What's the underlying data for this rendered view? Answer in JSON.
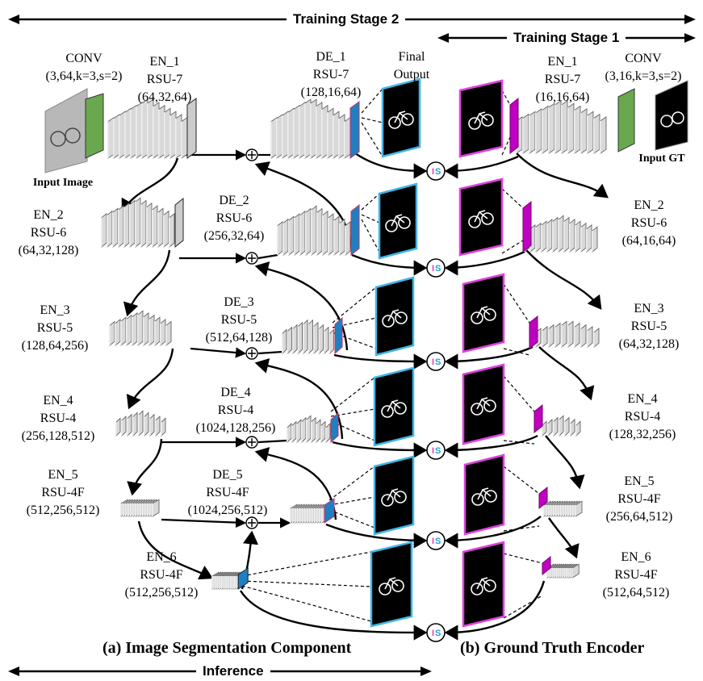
{
  "banners": {
    "stage2": "Training Stage 2",
    "stage1": "Training Stage 1",
    "inference": "Inference"
  },
  "captions": {
    "a": "(a) Image Segmentation Component",
    "b": "(b) Ground Truth Encoder"
  },
  "inputs": {
    "image": "Input Image",
    "gt": "Input GT",
    "final_output": [
      "Final",
      "Output"
    ]
  },
  "component_a": {
    "conv": {
      "name": "CONV",
      "params": "(3,64,k=3,s=2)"
    },
    "encoders": [
      {
        "id": "EN_1",
        "type": "RSU-7",
        "params": "(64,32,64)"
      },
      {
        "id": "EN_2",
        "type": "RSU-6",
        "params": "(64,32,128)"
      },
      {
        "id": "EN_3",
        "type": "RSU-5",
        "params": "(128,64,256)"
      },
      {
        "id": "EN_4",
        "type": "RSU-4",
        "params": "(256,128,512)"
      },
      {
        "id": "EN_5",
        "type": "RSU-4F",
        "params": "(512,256,512)"
      },
      {
        "id": "EN_6",
        "type": "RSU-4F",
        "params": "(512,256,512)"
      }
    ],
    "decoders": [
      {
        "id": "DE_1",
        "type": "RSU-7",
        "params": "(128,16,64)"
      },
      {
        "id": "DE_2",
        "type": "RSU-6",
        "params": "(256,32,64)"
      },
      {
        "id": "DE_3",
        "type": "RSU-5",
        "params": "(512,64,128)"
      },
      {
        "id": "DE_4",
        "type": "RSU-4",
        "params": "(1024,128,256)"
      },
      {
        "id": "DE_5",
        "type": "RSU-4F",
        "params": "(1024,256,512)"
      }
    ]
  },
  "component_b": {
    "conv": {
      "name": "CONV",
      "params": "(3,16,k=3,s=2)"
    },
    "encoders": [
      {
        "id": "EN_1",
        "type": "RSU-7",
        "params": "(16,16,64)"
      },
      {
        "id": "EN_2",
        "type": "RSU-6",
        "params": "(64,16,64)"
      },
      {
        "id": "EN_3",
        "type": "RSU-5",
        "params": "(64,32,128)"
      },
      {
        "id": "EN_4",
        "type": "RSU-4",
        "params": "(128,32,256)"
      },
      {
        "id": "EN_5",
        "type": "RSU-4F",
        "params": "(256,64,512)"
      },
      {
        "id": "EN_6",
        "type": "RSU-4F",
        "params": "(512,64,512)"
      }
    ]
  },
  "loss_node_label": "IS",
  "colors": {
    "conv": "#6aa84f",
    "block": "#d9d9d9",
    "block_edge": "#555555",
    "output_side": "#1f7fc1",
    "output_edge": "#3fb6e8",
    "gt_side": "#c000c0",
    "gt_edge": "#e040e0",
    "is_i": "#e03cc8",
    "is_s": "#1fa0d8"
  }
}
